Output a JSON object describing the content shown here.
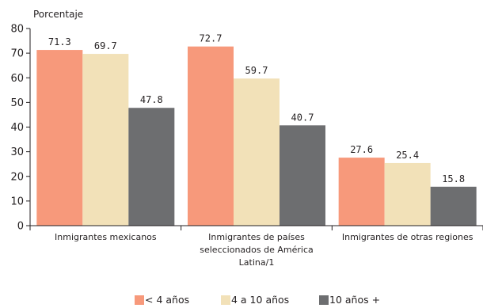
{
  "chart_data": {
    "type": "bar",
    "ylabel": "Porcentaje",
    "ylim": [
      0,
      80
    ],
    "yticks": [
      0,
      10,
      20,
      30,
      40,
      50,
      60,
      70,
      80
    ],
    "grid": false,
    "legend_position": "bottom",
    "categories": [
      [
        "Inmigrantes mexicanos"
      ],
      [
        "Inmigrantes de países",
        "seleccionados de América",
        "Latina/1"
      ],
      [
        "Inmigrantes de otras regiones"
      ]
    ],
    "series": [
      {
        "name": "< 4 años",
        "color": "#f7997b",
        "values": [
          71.3,
          72.7,
          27.6
        ],
        "labels": [
          "71.3",
          "72.7",
          "27.6"
        ]
      },
      {
        "name": "4 a 10 años",
        "color": "#f2e1b8",
        "values": [
          69.7,
          59.7,
          25.4
        ],
        "labels": [
          "69.7",
          "59.7",
          "25.4"
        ]
      },
      {
        "name": "10 años +",
        "color": "#6d6e70",
        "values": [
          47.8,
          40.7,
          15.8
        ],
        "labels": [
          "47.8",
          "40.7",
          "15.8"
        ]
      }
    ]
  }
}
